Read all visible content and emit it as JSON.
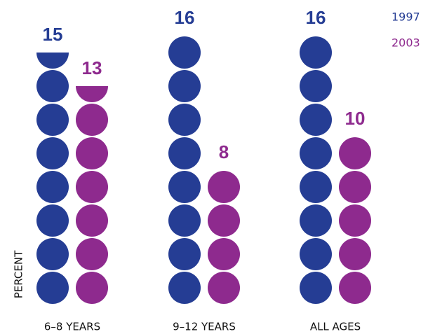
{
  "chart_data": {
    "type": "pictogram",
    "y_label": "PERCENT",
    "categories": [
      "6–8 YEARS",
      "9–12 YEARS",
      "ALL AGES"
    ],
    "series": [
      {
        "name": "1997",
        "color": "#253d94",
        "values": [
          15,
          16,
          16
        ]
      },
      {
        "name": "2003",
        "color": "#8e2a8e",
        "values": [
          13,
          8,
          10
        ]
      }
    ],
    "ylim": [
      0,
      16
    ]
  }
}
